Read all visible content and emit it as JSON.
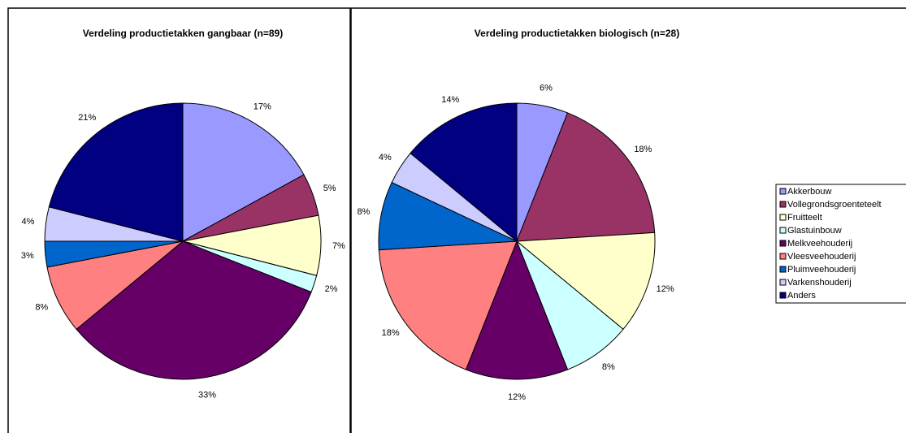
{
  "chart_data": [
    {
      "type": "pie",
      "title": "Verdeling productietakken gangbaar (n=89)",
      "categories": [
        "Akkerbouw",
        "Vollegrondsgroenteteelt",
        "Fruitteelt",
        "Glastuinbouw",
        "Melkveehouderij",
        "Vleesveehouderij",
        "Pluimveehouderij",
        "Varkenshouderij",
        "Anders"
      ],
      "values": [
        17,
        5,
        7,
        2,
        33,
        8,
        3,
        4,
        21
      ],
      "value_labels": [
        "17%",
        "5%",
        "7%",
        "2%",
        "33%",
        "8%",
        "3%",
        "4%",
        "21%"
      ],
      "colors": [
        "#9999ff",
        "#993366",
        "#ffffcc",
        "#ccffff",
        "#660066",
        "#ff8080",
        "#0066cc",
        "#ccccff",
        "#000080"
      ]
    },
    {
      "type": "pie",
      "title": "Verdeling productietakken biologisch (n=28)",
      "categories": [
        "Akkerbouw",
        "Vollegrondsgroenteteelt",
        "Fruitteelt",
        "Glastuinbouw",
        "Melkveehouderij",
        "Vleesveehouderij",
        "Pluimveehouderij",
        "Varkenshouderij",
        "Anders"
      ],
      "values": [
        6,
        18,
        12,
        8,
        12,
        18,
        8,
        4,
        14
      ],
      "value_labels": [
        "6%",
        "18%",
        "12%",
        "8%",
        "12%",
        "18%",
        "8%",
        "4%",
        "14%"
      ],
      "colors": [
        "#9999ff",
        "#993366",
        "#ffffcc",
        "#ccffff",
        "#660066",
        "#ff8080",
        "#0066cc",
        "#ccccff",
        "#000080"
      ]
    }
  ]
}
